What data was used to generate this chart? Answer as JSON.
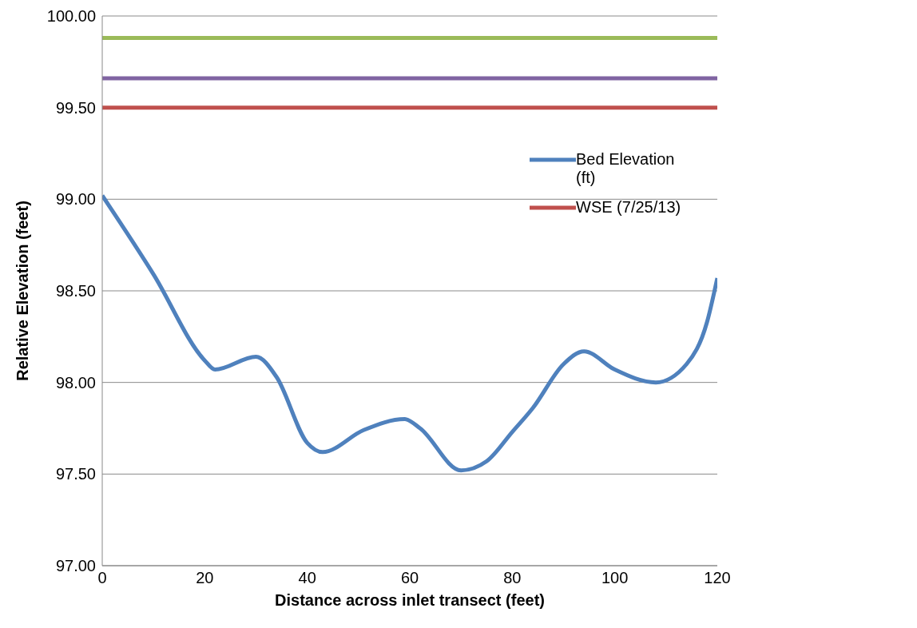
{
  "chart_data": {
    "type": "line",
    "xlabel": "Distance across inlet transect (feet)",
    "ylabel": "Relative Elevation (feet)",
    "series": [
      {
        "name": "Bed Elevation (ft)",
        "color": "#4f81bd",
        "x": [
          0,
          10,
          20,
          22,
          30,
          34,
          40,
          43,
          51,
          59,
          62,
          70,
          75,
          80,
          84,
          90,
          94,
          100,
          108,
          114,
          118,
          120
        ],
        "values": [
          99.02,
          98.59,
          98.12,
          98.07,
          98.14,
          98.03,
          97.67,
          97.62,
          97.74,
          97.8,
          97.75,
          97.52,
          97.57,
          97.73,
          97.86,
          98.1,
          98.17,
          98.07,
          98.0,
          98.1,
          98.33,
          98.57
        ]
      },
      {
        "name": "WSE (7/25/13)",
        "color": "#c0504d",
        "x": [
          0,
          120
        ],
        "values": [
          99.5,
          99.5
        ]
      },
      {
        "color": "#8064a2",
        "x": [
          0,
          120
        ],
        "values": [
          99.66,
          99.66
        ]
      },
      {
        "color": "#9bbb59",
        "x": [
          0,
          120
        ],
        "values": [
          99.88,
          99.88
        ]
      }
    ],
    "xlim": [
      0,
      120
    ],
    "xticks": [
      0,
      20,
      40,
      60,
      80,
      100,
      120
    ],
    "ylim": [
      97,
      100
    ],
    "yticks": [
      {
        "value": 97,
        "label": "97.00"
      },
      {
        "value": 97.5,
        "label": "97.50"
      },
      {
        "value": 98,
        "label": "98.00"
      },
      {
        "value": 98.5,
        "label": "98.50"
      },
      {
        "value": 99,
        "label": "99.00"
      },
      {
        "value": 99.5,
        "label": "99.50"
      },
      {
        "value": 100,
        "label": "100.00"
      }
    ],
    "grid": "y",
    "legend": "right",
    "marker": "none",
    "line_style": "solid"
  }
}
